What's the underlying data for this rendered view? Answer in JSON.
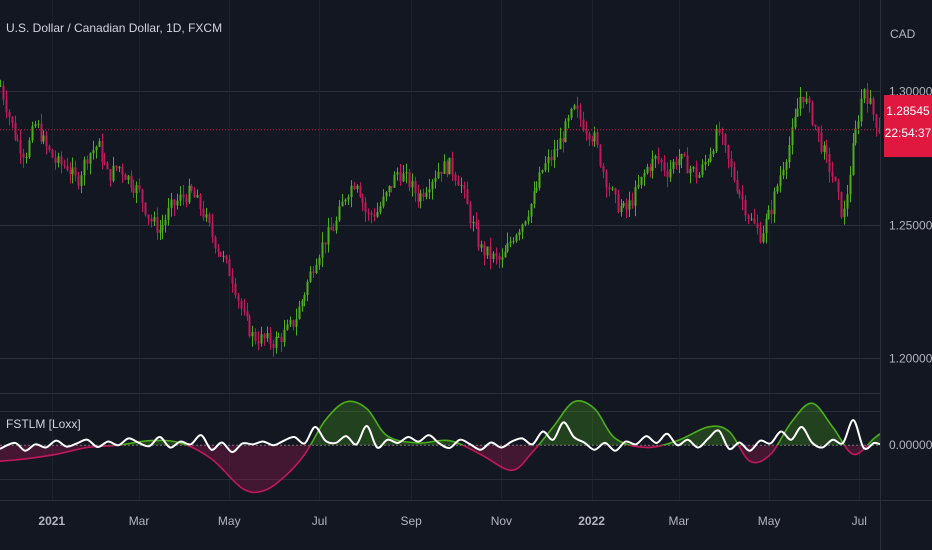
{
  "chart_data": [
    {
      "type": "candlestick",
      "title": "U.S. Dollar / Canadian Dollar, 1D, FXCM",
      "currency": "CAD",
      "y_ticks": [
        "1.30000",
        "1.25000",
        "1.20000"
      ],
      "y_tick_values": [
        1.3,
        1.25,
        1.2
      ],
      "ylim": [
        1.187,
        1.334
      ],
      "x_ticks": [
        "2021",
        "Mar",
        "May",
        "Jul",
        "Sep",
        "Nov",
        "2022",
        "Mar",
        "May",
        "Jul"
      ],
      "x_tick_dates": [
        "2021-01-01",
        "2021-03-01",
        "2021-05-01",
        "2021-07-01",
        "2021-09-01",
        "2021-11-01",
        "2022-01-01",
        "2022-03-01",
        "2022-05-01",
        "2022-07-01"
      ],
      "xlim": [
        "2020-11-27",
        "2022-07-15"
      ],
      "last_price": "1.28545",
      "last_price_value": 1.28545,
      "countdown": "22:54:37",
      "up_color": "#4caf1a",
      "down_color": "#c2185b",
      "close_path": [
        [
          "2020-11-27",
          1.302
        ],
        [
          "2020-12-07",
          1.283
        ],
        [
          "2020-12-14",
          1.276
        ],
        [
          "2020-12-21",
          1.288
        ],
        [
          "2020-12-28",
          1.279
        ],
        [
          "2021-01-04",
          1.273
        ],
        [
          "2021-01-11",
          1.272
        ],
        [
          "2021-01-18",
          1.266
        ],
        [
          "2021-01-25",
          1.276
        ],
        [
          "2021-02-01",
          1.28
        ],
        [
          "2021-02-08",
          1.268
        ],
        [
          "2021-02-15",
          1.272
        ],
        [
          "2021-02-22",
          1.267
        ],
        [
          "2021-03-01",
          1.262
        ],
        [
          "2021-03-08",
          1.252
        ],
        [
          "2021-03-15",
          1.248
        ],
        [
          "2021-03-22",
          1.256
        ],
        [
          "2021-03-29",
          1.26
        ],
        [
          "2021-04-05",
          1.262
        ],
        [
          "2021-04-12",
          1.256
        ],
        [
          "2021-04-19",
          1.246
        ],
        [
          "2021-04-26",
          1.238
        ],
        [
          "2021-05-03",
          1.23
        ],
        [
          "2021-05-10",
          1.216
        ],
        [
          "2021-05-17",
          1.208
        ],
        [
          "2021-05-24",
          1.207
        ],
        [
          "2021-05-31",
          1.206
        ],
        [
          "2021-06-07",
          1.209
        ],
        [
          "2021-06-14",
          1.214
        ],
        [
          "2021-06-21",
          1.225
        ],
        [
          "2021-06-28",
          1.237
        ],
        [
          "2021-07-05",
          1.245
        ],
        [
          "2021-07-12",
          1.25
        ],
        [
          "2021-07-19",
          1.262
        ],
        [
          "2021-07-26",
          1.267
        ],
        [
          "2021-08-02",
          1.253
        ],
        [
          "2021-08-09",
          1.255
        ],
        [
          "2021-08-16",
          1.262
        ],
        [
          "2021-08-23",
          1.27
        ],
        [
          "2021-08-30",
          1.266
        ],
        [
          "2021-09-06",
          1.26
        ],
        [
          "2021-09-13",
          1.266
        ],
        [
          "2021-09-20",
          1.271
        ],
        [
          "2021-09-27",
          1.272
        ],
        [
          "2021-10-04",
          1.266
        ],
        [
          "2021-10-11",
          1.252
        ],
        [
          "2021-10-18",
          1.241
        ],
        [
          "2021-10-25",
          1.238
        ],
        [
          "2021-11-01",
          1.236
        ],
        [
          "2021-11-08",
          1.245
        ],
        [
          "2021-11-15",
          1.251
        ],
        [
          "2021-11-22",
          1.259
        ],
        [
          "2021-11-29",
          1.271
        ],
        [
          "2021-12-06",
          1.276
        ],
        [
          "2021-12-13",
          1.284
        ],
        [
          "2021-12-20",
          1.293
        ],
        [
          "2021-12-27",
          1.287
        ],
        [
          "2022-01-03",
          1.282
        ],
        [
          "2022-01-10",
          1.268
        ],
        [
          "2022-01-17",
          1.258
        ],
        [
          "2022-01-24",
          1.255
        ],
        [
          "2022-01-31",
          1.262
        ],
        [
          "2022-02-07",
          1.271
        ],
        [
          "2022-02-14",
          1.275
        ],
        [
          "2022-02-21",
          1.27
        ],
        [
          "2022-02-28",
          1.275
        ],
        [
          "2022-03-07",
          1.272
        ],
        [
          "2022-03-14",
          1.268
        ],
        [
          "2022-03-21",
          1.276
        ],
        [
          "2022-03-28",
          1.285
        ],
        [
          "2022-04-04",
          1.272
        ],
        [
          "2022-04-11",
          1.262
        ],
        [
          "2022-04-18",
          1.252
        ],
        [
          "2022-04-25",
          1.246
        ],
        [
          "2022-05-02",
          1.255
        ],
        [
          "2022-05-09",
          1.27
        ],
        [
          "2022-05-16",
          1.283
        ],
        [
          "2022-05-23",
          1.3
        ],
        [
          "2022-05-30",
          1.29
        ],
        [
          "2022-06-06",
          1.278
        ],
        [
          "2022-06-13",
          1.268
        ],
        [
          "2022-06-20",
          1.252
        ],
        [
          "2022-06-27",
          1.28
        ],
        [
          "2022-07-04",
          1.302
        ],
        [
          "2022-07-11",
          1.29
        ],
        [
          "2022-07-15",
          1.285
        ]
      ]
    },
    {
      "type": "line",
      "title": "FSTLM [Loxx]",
      "y_ticks": [
        "0.00000"
      ],
      "y_tick_values": [
        0
      ],
      "ylim": [
        -1.2,
        1.1
      ],
      "fill_pos_color": "#4caf1a",
      "fill_neg_color": "#c2185b",
      "series": [
        {
          "color": "#ffffff",
          "points": [
            [
              "2020-11-27",
              -0.08
            ],
            [
              "2020-12-07",
              0.05
            ],
            [
              "2020-12-14",
              -0.12
            ],
            [
              "2020-12-21",
              0.02
            ],
            [
              "2020-12-28",
              -0.05
            ],
            [
              "2021-01-04",
              0.1
            ],
            [
              "2021-01-11",
              -0.03
            ],
            [
              "2021-01-18",
              0.04
            ],
            [
              "2021-01-25",
              0.12
            ],
            [
              "2021-02-01",
              -0.04
            ],
            [
              "2021-02-08",
              0.08
            ],
            [
              "2021-02-15",
              0.0
            ],
            [
              "2021-02-22",
              0.15
            ],
            [
              "2021-03-01",
              0.05
            ],
            [
              "2021-03-08",
              -0.02
            ],
            [
              "2021-03-15",
              0.18
            ],
            [
              "2021-03-22",
              -0.05
            ],
            [
              "2021-03-29",
              0.08
            ],
            [
              "2021-04-05",
              0.02
            ],
            [
              "2021-04-12",
              0.22
            ],
            [
              "2021-04-19",
              -0.1
            ],
            [
              "2021-04-26",
              0.06
            ],
            [
              "2021-05-03",
              -0.15
            ],
            [
              "2021-05-10",
              0.04
            ],
            [
              "2021-05-17",
              0.02
            ],
            [
              "2021-05-24",
              0.08
            ],
            [
              "2021-05-31",
              0.0
            ],
            [
              "2021-06-07",
              0.1
            ],
            [
              "2021-06-14",
              0.18
            ],
            [
              "2021-06-21",
              0.04
            ],
            [
              "2021-06-28",
              0.4
            ],
            [
              "2021-07-05",
              0.1
            ],
            [
              "2021-07-12",
              0.05
            ],
            [
              "2021-07-19",
              0.2
            ],
            [
              "2021-07-26",
              0.02
            ],
            [
              "2021-08-02",
              0.42
            ],
            [
              "2021-08-09",
              -0.05
            ],
            [
              "2021-08-16",
              0.12
            ],
            [
              "2021-08-23",
              0.05
            ],
            [
              "2021-08-30",
              0.18
            ],
            [
              "2021-09-06",
              0.08
            ],
            [
              "2021-09-13",
              0.22
            ],
            [
              "2021-09-20",
              0.04
            ],
            [
              "2021-09-27",
              -0.06
            ],
            [
              "2021-10-04",
              0.12
            ],
            [
              "2021-10-11",
              0.02
            ],
            [
              "2021-10-18",
              -0.1
            ],
            [
              "2021-10-25",
              0.06
            ],
            [
              "2021-11-01",
              -0.05
            ],
            [
              "2021-11-08",
              0.08
            ],
            [
              "2021-11-15",
              0.15
            ],
            [
              "2021-11-22",
              0.02
            ],
            [
              "2021-11-29",
              0.3
            ],
            [
              "2021-12-06",
              0.12
            ],
            [
              "2021-12-13",
              0.5
            ],
            [
              "2021-12-20",
              0.18
            ],
            [
              "2021-12-27",
              0.06
            ],
            [
              "2022-01-03",
              -0.1
            ],
            [
              "2022-01-10",
              0.05
            ],
            [
              "2022-01-17",
              -0.12
            ],
            [
              "2022-01-24",
              0.08
            ],
            [
              "2022-01-31",
              0.02
            ],
            [
              "2022-02-07",
              0.2
            ],
            [
              "2022-02-14",
              0.05
            ],
            [
              "2022-02-21",
              0.25
            ],
            [
              "2022-02-28",
              0.0
            ],
            [
              "2022-03-07",
              0.12
            ],
            [
              "2022-03-14",
              -0.05
            ],
            [
              "2022-03-21",
              0.15
            ],
            [
              "2022-03-28",
              0.32
            ],
            [
              "2022-04-04",
              -0.08
            ],
            [
              "2022-04-11",
              0.06
            ],
            [
              "2022-04-18",
              -0.12
            ],
            [
              "2022-04-25",
              0.1
            ],
            [
              "2022-05-02",
              0.04
            ],
            [
              "2022-05-09",
              0.3
            ],
            [
              "2022-05-16",
              0.12
            ],
            [
              "2022-05-23",
              0.4
            ],
            [
              "2022-05-30",
              0.06
            ],
            [
              "2022-06-06",
              -0.05
            ],
            [
              "2022-06-13",
              0.12
            ],
            [
              "2022-06-20",
              0.05
            ],
            [
              "2022-06-27",
              0.55
            ],
            [
              "2022-07-04",
              -0.06
            ],
            [
              "2022-07-11",
              0.05
            ],
            [
              "2022-07-15",
              0.02
            ]
          ]
        },
        {
          "color": "#4caf1a",
          "points": [
            [
              "2020-11-27",
              -0.35
            ],
            [
              "2020-12-14",
              -0.3
            ],
            [
              "2021-01-04",
              -0.2
            ],
            [
              "2021-01-25",
              -0.05
            ],
            [
              "2021-02-15",
              0.0
            ],
            [
              "2021-03-08",
              0.1
            ],
            [
              "2021-03-29",
              0.05
            ],
            [
              "2021-04-19",
              -0.3
            ],
            [
              "2021-05-10",
              -0.95
            ],
            [
              "2021-05-24",
              -1.0
            ],
            [
              "2021-06-07",
              -0.7
            ],
            [
              "2021-06-21",
              -0.2
            ],
            [
              "2021-07-05",
              0.55
            ],
            [
              "2021-07-19",
              0.95
            ],
            [
              "2021-08-02",
              0.8
            ],
            [
              "2021-08-16",
              0.2
            ],
            [
              "2021-09-06",
              0.05
            ],
            [
              "2021-09-27",
              0.1
            ],
            [
              "2021-10-18",
              -0.2
            ],
            [
              "2021-11-08",
              -0.55
            ],
            [
              "2021-11-22",
              -0.15
            ],
            [
              "2021-12-06",
              0.4
            ],
            [
              "2021-12-20",
              0.95
            ],
            [
              "2022-01-03",
              0.8
            ],
            [
              "2022-01-17",
              0.15
            ],
            [
              "2022-02-07",
              -0.05
            ],
            [
              "2022-02-28",
              0.1
            ],
            [
              "2022-03-21",
              0.4
            ],
            [
              "2022-04-04",
              0.3
            ],
            [
              "2022-04-18",
              -0.35
            ],
            [
              "2022-05-02",
              -0.2
            ],
            [
              "2022-05-16",
              0.5
            ],
            [
              "2022-05-30",
              0.92
            ],
            [
              "2022-06-13",
              0.4
            ],
            [
              "2022-06-27",
              -0.2
            ],
            [
              "2022-07-11",
              0.15
            ],
            [
              "2022-07-15",
              0.25
            ]
          ]
        }
      ]
    }
  ],
  "legend": {
    "main": "U.S. Dollar / Canadian Dollar, 1D, FXCM",
    "indicator": "FSTLM [Loxx]"
  }
}
